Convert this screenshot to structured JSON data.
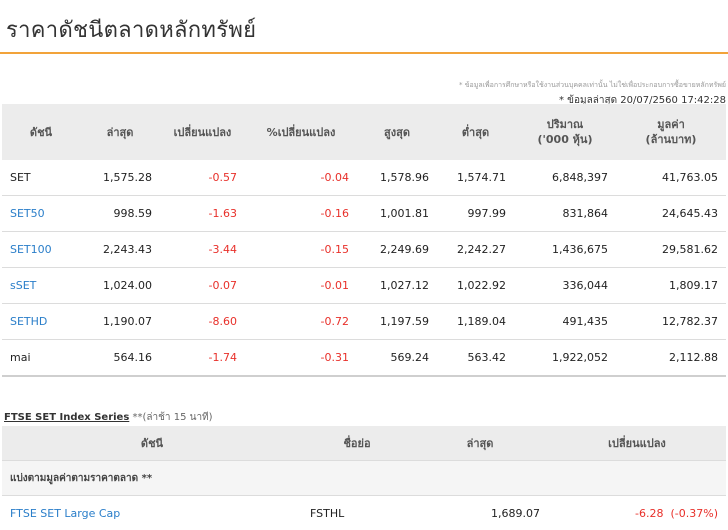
{
  "page": {
    "title": "ราคาดัชนีตลาดหลักทรัพย์"
  },
  "notes": {
    "disclaimer": "* ข้อมูลเพื่อการศึกษาหรือใช้งานส่วนบุคคลเท่านั้น ไม่ใช่เพื่อประกอบการซื้อขายหลักทรัพย์",
    "as_of": "* ข้อมูลล่าสุด 20/07/2560 17:42:28"
  },
  "index_table": {
    "headers": {
      "index": "ดัชนี",
      "last": "ล่าสุด",
      "change": "เปลี่ยนแปลง",
      "pct_change": "%เปลี่ยนแปลง",
      "high": "สูงสุด",
      "low": "ต่ำสุด",
      "volume": "ปริมาณ",
      "volume_unit": "('000 หุ้น)",
      "value": "มูลค่า",
      "value_unit": "(ล้านบาท)"
    },
    "rows": [
      {
        "name": "SET",
        "last": "1,575.28",
        "change": "-0.57",
        "pct": "-0.04",
        "high": "1,578.96",
        "low": "1,574.71",
        "volume": "6,848,397",
        "value": "41,763.05"
      },
      {
        "name": "SET50",
        "last": "998.59",
        "change": "-1.63",
        "pct": "-0.16",
        "high": "1,001.81",
        "low": "997.99",
        "volume": "831,864",
        "value": "24,645.43"
      },
      {
        "name": "SET100",
        "last": "2,243.43",
        "change": "-3.44",
        "pct": "-0.15",
        "high": "2,249.69",
        "low": "2,242.27",
        "volume": "1,436,675",
        "value": "29,581.62"
      },
      {
        "name": "sSET",
        "last": "1,024.00",
        "change": "-0.07",
        "pct": "-0.01",
        "high": "1,027.12",
        "low": "1,022.92",
        "volume": "336,044",
        "value": "1,809.17"
      },
      {
        "name": "SETHD",
        "last": "1,190.07",
        "change": "-8.60",
        "pct": "-0.72",
        "high": "1,197.59",
        "low": "1,189.04",
        "volume": "491,435",
        "value": "12,782.37"
      },
      {
        "name": "mai",
        "last": "564.16",
        "change": "-1.74",
        "pct": "-0.31",
        "high": "569.24",
        "low": "563.42",
        "volume": "1,922,052",
        "value": "2,112.88"
      }
    ]
  },
  "ftse": {
    "caption": "FTSE SET Index Series",
    "caption_sub": " **(ล่าช้า 15 นาที)",
    "headers": {
      "index": "ดัชนี",
      "abbr": "ชื่อย่อ",
      "last": "ล่าสุด",
      "change": "เปลี่ยนแปลง"
    },
    "group": "แบ่งตามมูลค่าตามราคาตลาด **",
    "rows": [
      {
        "name": "FTSE SET Large Cap",
        "abbr": "FSTHL",
        "last": "1,689.07",
        "change": "-6.28",
        "pct": "(-0.37%)"
      }
    ]
  }
}
